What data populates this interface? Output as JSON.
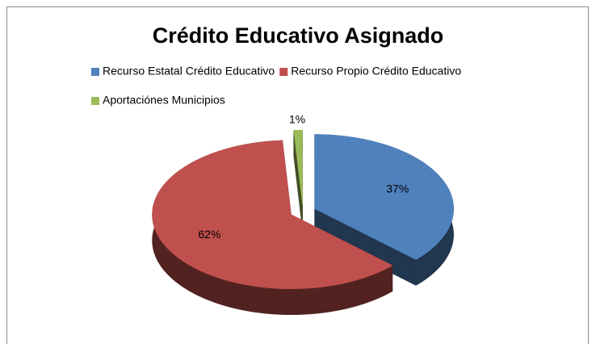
{
  "chart_data": {
    "type": "pie3d",
    "title": "Crédito Educativo Asignado",
    "categories": [
      "Recurso Estatal Crédito Educativo",
      "Recurso Propio Crédito Educativo",
      "Aportaciónes Municipios"
    ],
    "values": [
      37,
      62,
      1
    ],
    "value_labels": [
      "37%",
      "62%",
      "1%"
    ],
    "colors": [
      "#4f81bd",
      "#c0504d",
      "#9bbb59"
    ],
    "legend": "top"
  }
}
